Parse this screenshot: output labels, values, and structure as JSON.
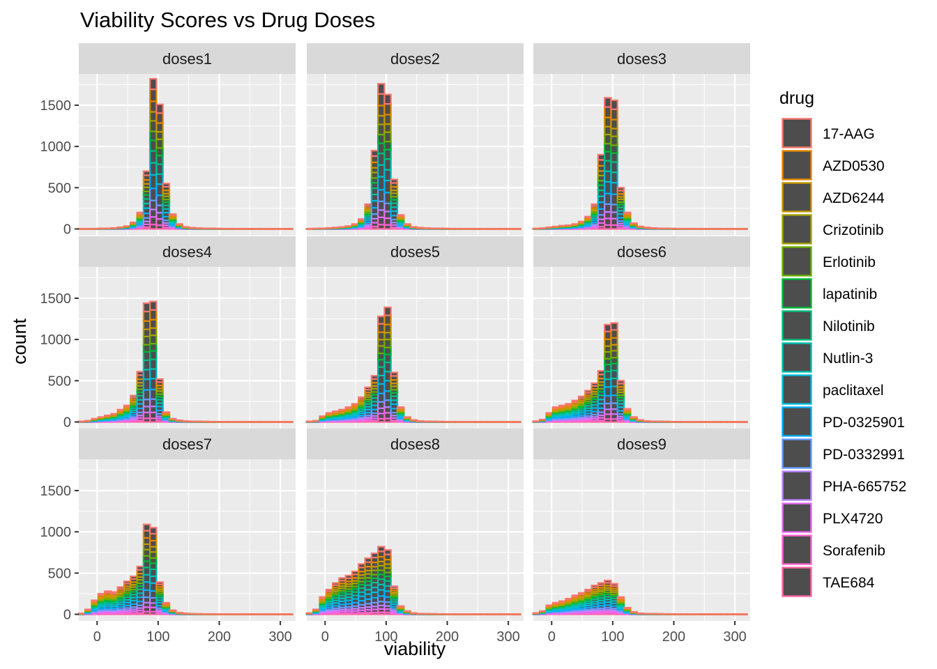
{
  "title": "Viability Scores vs Drug Doses",
  "chart_data": {
    "type": "bar",
    "subtype": "faceted stacked histogram",
    "title": "Viability Scores vs Drug Doses",
    "xlabel": "viability",
    "ylabel": "count",
    "xlim": [
      -30,
      325
    ],
    "ylim": [
      -80,
      1880
    ],
    "x_ticks": [
      0,
      100,
      200,
      300
    ],
    "y_ticks": [
      0,
      500,
      1000,
      1500
    ],
    "bin_width": 10.6,
    "bin_start": -30,
    "bin_count": 33,
    "grid": true,
    "legend_position": "right",
    "legend_title": "drug",
    "fill_color": "#4d4d4d",
    "series": [
      {
        "name": "17-AAG",
        "color": "#F8766D"
      },
      {
        "name": "AZD0530",
        "color": "#E58700"
      },
      {
        "name": "AZD6244",
        "color": "#C99800"
      },
      {
        "name": "Crizotinib",
        "color": "#A3A500"
      },
      {
        "name": "Erlotinib",
        "color": "#6BB100"
      },
      {
        "name": "lapatinib",
        "color": "#00BA38"
      },
      {
        "name": "Nilotinib",
        "color": "#00BF7D"
      },
      {
        "name": "Nutlin-3",
        "color": "#00C0AF"
      },
      {
        "name": "paclitaxel",
        "color": "#00BCD8"
      },
      {
        "name": "PD-0325901",
        "color": "#00B0F6"
      },
      {
        "name": "PD-0332991",
        "color": "#619CFF"
      },
      {
        "name": "PHA-665752",
        "color": "#B983FF"
      },
      {
        "name": "PLX4720",
        "color": "#E76BF3"
      },
      {
        "name": "Sorafenib",
        "color": "#FD61D1"
      },
      {
        "name": "TAE684",
        "color": "#FF67A4"
      }
    ],
    "facets": [
      {
        "label": "doses1",
        "totals": [
          2,
          3,
          4,
          6,
          8,
          12,
          20,
          35,
          80,
          200,
          700,
          1820,
          1510,
          550,
          180,
          60,
          25,
          15,
          10,
          8,
          6,
          5,
          4,
          4,
          3,
          3,
          3,
          3,
          2,
          2,
          2,
          2,
          2
        ]
      },
      {
        "label": "doses2",
        "totals": [
          3,
          5,
          8,
          12,
          18,
          25,
          35,
          60,
          120,
          300,
          950,
          1760,
          1630,
          600,
          170,
          60,
          25,
          15,
          10,
          8,
          6,
          5,
          4,
          4,
          3,
          3,
          3,
          3,
          2,
          2,
          2,
          2,
          2
        ]
      },
      {
        "label": "doses3",
        "totals": [
          5,
          10,
          20,
          30,
          40,
          45,
          60,
          90,
          150,
          300,
          900,
          1590,
          1560,
          500,
          200,
          70,
          30,
          18,
          12,
          8,
          6,
          5,
          4,
          4,
          3,
          3,
          3,
          3,
          2,
          2,
          2,
          2,
          2
        ]
      },
      {
        "label": "doses4",
        "totals": [
          8,
          15,
          40,
          60,
          80,
          100,
          150,
          200,
          320,
          610,
          1440,
          1460,
          520,
          120,
          40,
          20,
          12,
          8,
          6,
          5,
          4,
          4,
          3,
          3,
          3,
          3,
          2,
          2,
          2,
          2,
          2,
          2,
          2
        ]
      },
      {
        "label": "doses5",
        "totals": [
          8,
          15,
          70,
          110,
          130,
          150,
          180,
          220,
          300,
          420,
          560,
          1280,
          1390,
          600,
          180,
          60,
          25,
          12,
          8,
          6,
          5,
          4,
          4,
          3,
          3,
          3,
          3,
          2,
          2,
          2,
          2,
          2,
          2
        ]
      },
      {
        "label": "doses6",
        "totals": [
          10,
          30,
          110,
          180,
          200,
          220,
          260,
          310,
          380,
          470,
          620,
          1180,
          1200,
          500,
          160,
          60,
          25,
          12,
          8,
          6,
          5,
          4,
          4,
          3,
          3,
          3,
          3,
          2,
          2,
          2,
          2,
          2,
          2
        ]
      },
      {
        "label": "doses7",
        "totals": [
          10,
          60,
          170,
          250,
          280,
          270,
          330,
          400,
          460,
          580,
          1090,
          1050,
          390,
          140,
          50,
          20,
          10,
          6,
          5,
          4,
          4,
          3,
          3,
          3,
          3,
          2,
          2,
          2,
          2,
          2,
          2,
          2,
          2
        ]
      },
      {
        "label": "doses8",
        "totals": [
          15,
          60,
          210,
          300,
          380,
          440,
          470,
          520,
          610,
          680,
          740,
          820,
          780,
          340,
          100,
          40,
          15,
          8,
          6,
          5,
          4,
          4,
          3,
          3,
          3,
          3,
          2,
          2,
          2,
          2,
          2,
          2,
          2
        ]
      },
      {
        "label": "doses9",
        "totals": [
          15,
          40,
          110,
          140,
          160,
          190,
          230,
          260,
          300,
          350,
          380,
          410,
          370,
          210,
          80,
          30,
          12,
          8,
          6,
          5,
          4,
          4,
          3,
          3,
          3,
          3,
          2,
          2,
          2,
          2,
          2,
          2,
          2
        ]
      }
    ]
  }
}
